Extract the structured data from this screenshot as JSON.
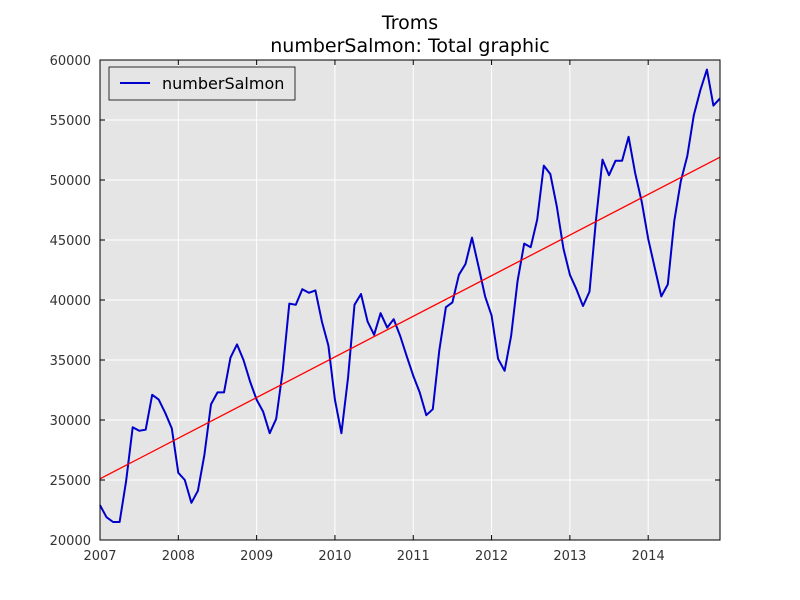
{
  "chart_data": {
    "type": "line",
    "title_line1": "Troms",
    "title_line2": "numberSalmon: Total graphic",
    "xlabel": "",
    "ylabel": "",
    "xlim": [
      2007.0,
      2014.917
    ],
    "ylim": [
      20000,
      60000
    ],
    "x_ticks": [
      2007,
      2008,
      2009,
      2010,
      2011,
      2012,
      2013,
      2014
    ],
    "x_tick_labels": [
      "2007",
      "2008",
      "2009",
      "2010",
      "2011",
      "2012",
      "2013",
      "2014"
    ],
    "y_ticks": [
      20000,
      25000,
      30000,
      35000,
      40000,
      45000,
      50000,
      55000,
      60000
    ],
    "y_tick_labels": [
      "20000",
      "25000",
      "30000",
      "35000",
      "40000",
      "45000",
      "50000",
      "55000",
      "60000"
    ],
    "grid": true,
    "legend_position": "top-left",
    "series": [
      {
        "name": "numberSalmon",
        "color": "#0000cc",
        "x": [
          2007.0,
          2007.083,
          2007.167,
          2007.25,
          2007.333,
          2007.417,
          2007.5,
          2007.583,
          2007.667,
          2007.75,
          2007.833,
          2007.917,
          2008.0,
          2008.083,
          2008.167,
          2008.25,
          2008.333,
          2008.417,
          2008.5,
          2008.583,
          2008.667,
          2008.75,
          2008.833,
          2008.917,
          2009.0,
          2009.083,
          2009.167,
          2009.25,
          2009.333,
          2009.417,
          2009.5,
          2009.583,
          2009.667,
          2009.75,
          2009.833,
          2009.917,
          2010.0,
          2010.083,
          2010.167,
          2010.25,
          2010.333,
          2010.417,
          2010.5,
          2010.583,
          2010.667,
          2010.75,
          2010.833,
          2010.917,
          2011.0,
          2011.083,
          2011.167,
          2011.25,
          2011.333,
          2011.417,
          2011.5,
          2011.583,
          2011.667,
          2011.75,
          2011.833,
          2011.917,
          2012.0,
          2012.083,
          2012.167,
          2012.25,
          2012.333,
          2012.417,
          2012.5,
          2012.583,
          2012.667,
          2012.75,
          2012.833,
          2012.917,
          2013.0,
          2013.083,
          2013.167,
          2013.25,
          2013.333,
          2013.417,
          2013.5,
          2013.583,
          2013.667,
          2013.75,
          2013.833,
          2013.917,
          2014.0,
          2014.083,
          2014.167,
          2014.25,
          2014.333,
          2014.417,
          2014.5,
          2014.583,
          2014.667,
          2014.75,
          2014.833,
          2014.917
        ],
        "values": [
          22900,
          21900,
          21500,
          21500,
          24900,
          29400,
          29100,
          29200,
          32100,
          31700,
          30600,
          29300,
          25600,
          25000,
          23100,
          24100,
          27100,
          31300,
          32300,
          32300,
          35200,
          36300,
          35000,
          33200,
          31700,
          30700,
          28900,
          30100,
          34100,
          39700,
          39600,
          40900,
          40600,
          40800,
          38200,
          36200,
          31700,
          28900,
          33500,
          39600,
          40500,
          38200,
          37100,
          38900,
          37700,
          38400,
          37000,
          35300,
          33700,
          32300,
          30400,
          30900,
          35800,
          39400,
          39800,
          42100,
          43000,
          45200,
          42800,
          40300,
          38700,
          35100,
          34100,
          37000,
          41600,
          44700,
          44400,
          46700,
          51200,
          50500,
          47800,
          44300,
          42100,
          40900,
          39500,
          40700,
          46700,
          51700,
          50400,
          51600,
          51600,
          53600,
          50600,
          48200,
          45100,
          42700,
          40300,
          41300,
          46600,
          49900,
          52000,
          55400,
          57500,
          59200,
          56200,
          56800
        ]
      },
      {
        "color": "#ff0000",
        "x": [
          2007.0,
          2014.917
        ],
        "values": [
          25100,
          51900
        ]
      }
    ]
  }
}
